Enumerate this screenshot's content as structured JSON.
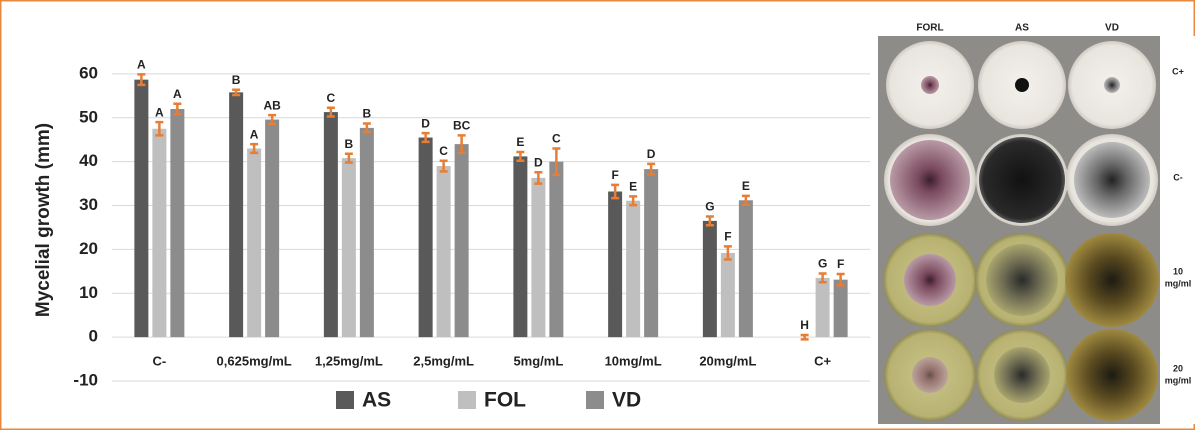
{
  "chart_data": {
    "type": "bar",
    "y_label": "Mycelial growth (mm)",
    "categories": [
      "C-",
      "0,625mg/mL",
      "1,25mg/mL",
      "2,5mg/mL",
      "5mg/mL",
      "10mg/mL",
      "20mg/mL",
      "C+"
    ],
    "series": [
      {
        "name": "AS",
        "color": "#595959",
        "values": [
          58.7,
          55.8,
          51.3,
          45.5,
          41.2,
          33.2,
          26.5,
          0
        ],
        "errors": [
          1.2,
          0.6,
          1.0,
          1.0,
          1.0,
          1.5,
          1.0,
          0.5
        ],
        "significance": [
          "A",
          "B",
          "C",
          "D",
          "E",
          "F",
          "G",
          "H"
        ]
      },
      {
        "name": "FOL",
        "color": "#bfbfbf",
        "values": [
          47.5,
          43,
          40.8,
          39,
          36.3,
          31.1,
          19.2,
          13.5
        ],
        "errors": [
          1.5,
          1.0,
          1.0,
          1.2,
          1.3,
          1.0,
          1.5,
          1.0
        ],
        "significance": [
          "A",
          "A",
          "B",
          "C",
          "D",
          "E",
          "F",
          "G"
        ]
      },
      {
        "name": "VD",
        "color": "#8c8c8c",
        "values": [
          52,
          49.6,
          47.7,
          44,
          40,
          38.3,
          31.2,
          13.1
        ],
        "errors": [
          1.2,
          1.0,
          1.0,
          2.0,
          3.0,
          1.2,
          1.0,
          1.3
        ],
        "significance": [
          "A",
          "AB",
          "B",
          "BC",
          "C",
          "D",
          "E",
          "F"
        ]
      }
    ],
    "error_color": "#e67e35",
    "ylim": [
      -10,
      65
    ],
    "yticks": [
      -10,
      0,
      10,
      20,
      30,
      40,
      50,
      60
    ],
    "grid": true,
    "legend": "bottom"
  },
  "photo_panel": {
    "columns": [
      "FORL",
      "AS",
      "VD"
    ],
    "rows": [
      [
        "C+"
      ],
      [
        "C-"
      ],
      [
        "10",
        "mg/ml"
      ],
      [
        "20",
        "mg/ml"
      ]
    ]
  }
}
